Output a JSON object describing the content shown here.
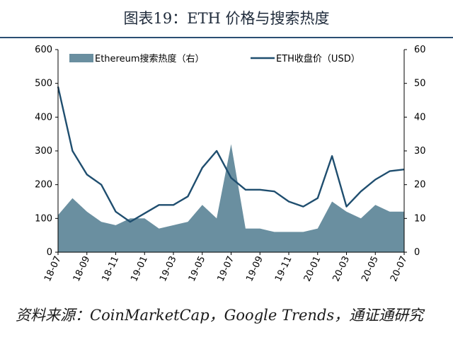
{
  "title": "图表19：ETH 价格与搜索热度",
  "source": "资料来源：CoinMarketCap，Google Trends，通证通研究",
  "colors": {
    "area": "#6a8fa0",
    "line": "#1f4e6f",
    "rule": "#2b4f73"
  },
  "chart_data": {
    "type": "line",
    "categories": [
      "18-07",
      "18-09",
      "18-11",
      "19-01",
      "19-03",
      "19-05",
      "19-07",
      "19-09",
      "19-11",
      "20-01",
      "20-03",
      "20-05",
      "20-07"
    ],
    "x": [
      "18-07",
      "18-08",
      "18-09",
      "18-10",
      "18-11",
      "18-12",
      "19-01",
      "19-02",
      "19-03",
      "19-04",
      "19-05",
      "19-06",
      "19-07",
      "19-08",
      "19-09",
      "19-10",
      "19-11",
      "19-12",
      "20-01",
      "20-02",
      "20-03",
      "20-04",
      "20-05",
      "20-06",
      "20-07"
    ],
    "ylim": [
      0,
      600
    ],
    "y2lim": [
      0,
      60
    ],
    "y_ticks": [
      "0",
      "100",
      "200",
      "300",
      "400",
      "500",
      "600"
    ],
    "y2_ticks": [
      "0",
      "10",
      "20",
      "30",
      "40",
      "50",
      "60"
    ],
    "series": [
      {
        "name": "Ethereum搜索热度（右）",
        "type": "area",
        "axis": "right",
        "values": [
          11,
          16,
          12,
          9,
          8,
          10,
          10,
          7,
          8,
          9,
          14,
          10,
          32,
          7,
          7,
          6,
          6,
          6,
          7,
          15,
          12,
          10,
          14,
          12,
          12
        ]
      },
      {
        "name": "ETH收盘价（USD）",
        "type": "line",
        "axis": "left",
        "values": [
          490,
          300,
          230,
          200,
          120,
          90,
          115,
          140,
          140,
          165,
          250,
          300,
          220,
          185,
          185,
          180,
          150,
          135,
          160,
          285,
          135,
          180,
          215,
          240,
          245
        ]
      }
    ]
  }
}
